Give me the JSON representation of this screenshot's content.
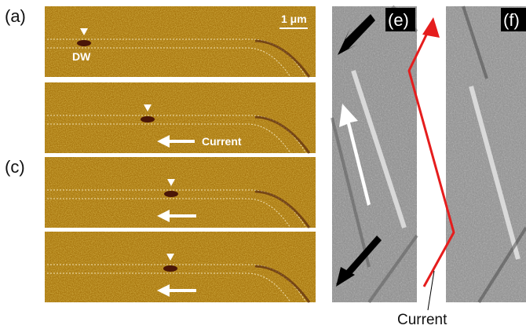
{
  "labels": {
    "a": "(a)",
    "c": "(c)",
    "e": "(e)",
    "f": "(f)"
  },
  "scale_bar": "1 μm",
  "domain_wall": "DW",
  "current_left": "Current",
  "current_right": "Current"
}
